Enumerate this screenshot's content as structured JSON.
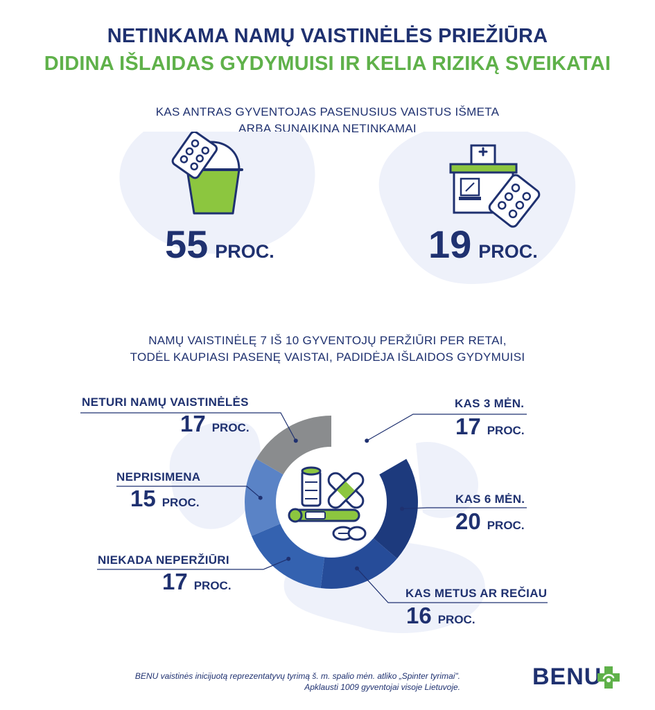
{
  "header": {
    "title_line1": "NETINKAMA NAMŲ VAISTINĖLĖS PRIEŽIŪRA",
    "title_line2": "DIDINA IŠLAIDAS GYDYMUISI IR KELIA RIZIKĄ SVEIKATAI"
  },
  "section1": {
    "subtitle_line1": "KAS ANTRAS GYVENTOJAS PASENUSIUS VAISTUS IŠMETA",
    "subtitle_line2": "ARBA SUNAIKINA NETINKAMAI",
    "stat_left": {
      "value": "55",
      "unit": "PROC.",
      "icon": "trash-bin-icon"
    },
    "stat_right": {
      "value": "19",
      "unit": "PROC.",
      "icon": "pharmacy-icon"
    }
  },
  "section2": {
    "subtitle_line1": "NAMŲ VAISTINĖLĘ 7 IŠ 10 GYVENTOJŲ PERŽIŪRI PER RETAI,",
    "subtitle_line2": "TODĖL KAUPIASI PASENĘ VAISTAI, PADIDĖJA IŠLAIDOS GYDYMUISI"
  },
  "chart_data": {
    "type": "pie",
    "unit": "PROC.",
    "slices": [
      {
        "label": "KAS 3 MĖN.",
        "value": 17,
        "color": "#ffffff"
      },
      {
        "label": "KAS 6 MĖN.",
        "value": 20,
        "color": "#1d3a7d"
      },
      {
        "label": "KAS METUS AR REČIAU",
        "value": 16,
        "color": "#264c99"
      },
      {
        "label": "NIEKADA NEPERŽIŪRI",
        "value": 17,
        "color": "#3462b0"
      },
      {
        "label": "NEPRISIMENA",
        "value": 15,
        "color": "#5a83c6"
      },
      {
        "label": "NETURI NAMŲ VAISTINĖLĖS",
        "value": 17,
        "color": "#8a8c8e"
      }
    ]
  },
  "footer": {
    "note_line1": "BENU vaistinės inicijuotą reprezentatyvų tyrimą š. m. spalio mėn. atliko „Spinter tyrimai\".",
    "note_line2": "Apklausti 1009 gyventojai visoje Lietuvoje.",
    "logo_text": "BENU"
  },
  "colors": {
    "navy": "#1f3170",
    "green": "#5fb14a",
    "blob": "#eef1fa"
  }
}
